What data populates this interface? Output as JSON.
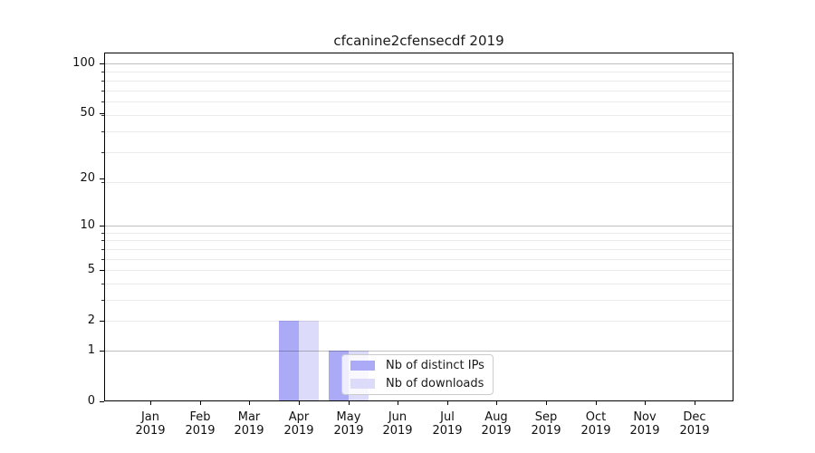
{
  "chart_data": {
    "type": "bar",
    "title": "cfcanine2cfensecdf 2019",
    "categories": [
      "Jan",
      "Feb",
      "Mar",
      "Apr",
      "May",
      "Jun",
      "Jul",
      "Aug",
      "Sep",
      "Oct",
      "Nov",
      "Dec"
    ],
    "x_tick_year": "2019",
    "series": [
      {
        "name": "Nb of distinct IPs",
        "color": "#aaaaf7",
        "values": [
          0,
          0,
          0,
          2,
          1,
          0,
          0,
          0,
          0,
          0,
          0,
          0
        ]
      },
      {
        "name": "Nb of downloads",
        "color": "#dcdcfa",
        "values": [
          0,
          0,
          0,
          2,
          1,
          0,
          0,
          0,
          0,
          0,
          0,
          0
        ]
      }
    ],
    "yscale": "log10(1+y)",
    "ylim": [
      0,
      116
    ],
    "yticks": [
      0,
      1,
      2,
      5,
      10,
      20,
      50,
      100
    ],
    "major_gridlines": [
      1,
      10,
      100
    ],
    "minor_gridlines": [
      2,
      3,
      4,
      5,
      6,
      7,
      8,
      9,
      19,
      29,
      39,
      49,
      59,
      69,
      79,
      89
    ],
    "grid": true,
    "legend": {
      "position": "lower center",
      "frame_alpha": 0.8
    },
    "colors": {
      "spine": "#000000",
      "major_grid": "rgba(0,0,0,0.25)",
      "minor_grid": "rgba(0,0,0,0.08)",
      "text": "#1a1a1a",
      "background": "#ffffff"
    }
  }
}
